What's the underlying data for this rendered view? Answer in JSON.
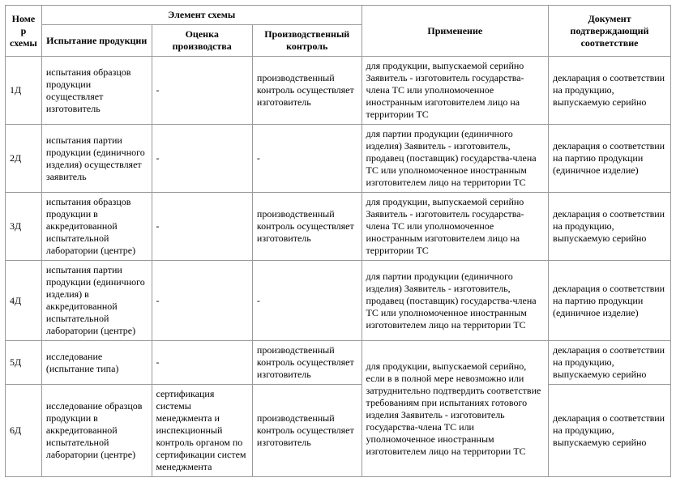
{
  "header": {
    "scheme_no": "Номер схемы",
    "element": "Элемент схемы",
    "application": "Применение",
    "document": "Документ подтверждающий соответствие",
    "testing": "Испытание продукции",
    "evaluation": "Оценка производства",
    "control": "Производственный контроль"
  },
  "dash": "-",
  "rows": [
    {
      "num": "1Д",
      "test": "испытания образцов продукции осуществляет изготовитель",
      "ctrl": "производственный контроль осуществляет изготовитель",
      "app": "для продукции, выпускаемой серийно Заявитель - изготовитель государства-члена ТС или уполномоченное иностранным изготовителем лицо на территории ТС",
      "doc": "декларация о соответствии на продукцию, выпускаемую серийно"
    },
    {
      "num": "2Д",
      "test": "испытания партии продукции (единичного изделия) осуществляет заявитель",
      "app": "для партии продукции (единичного изделия) Заявитель - изготовитель, продавец (поставщик) государства-члена ТС или уполномоченное иностранным изготовителем лицо на территории ТС",
      "doc": "декларация о соответствии на партию продукции (единичное изделие)"
    },
    {
      "num": "3Д",
      "test": "испытания образцов продукции в аккредитованной испытательной лаборатории (центре)",
      "ctrl": "производственный контроль осуществляет изготовитель",
      "app": "для продукции, выпускаемой серийно Заявитель - изготовитель государства-члена ТС или уполномоченное иностранным изготовителем лицо на территории ТС",
      "doc": "декларация о соответствии на продукцию, выпускаемую серийно"
    },
    {
      "num": "4Д",
      "test": "испытания партии продукции (единичного изделия) в аккредитованной испытательной лаборатории (центре)",
      "app": "для партии продукции (единичного изделия) Заявитель - изготовитель, продавец (поставщик) государства-члена ТС или уполномоченное иностранным изготовителем лицо на территории ТС",
      "doc": "декларация о соответствии на партию продукции (единичное изделие)"
    },
    {
      "num": "5Д",
      "test": "исследование (испытание типа)",
      "ctrl": "производственный контроль осуществляет изготовитель",
      "doc": "декларация о соответствии на продукцию, выпускаемую серийно"
    },
    {
      "num": "6Д",
      "test": "исследование образцов продукции в аккредитованной испытательной лаборатории (центре)",
      "eval": "сертификация системы менеджмента и инспекционный контроль органом по сертификации систем менеджмента",
      "ctrl": "производственный контроль осуществляет изготовитель",
      "doc": "декларация о соответствии на продукцию, выпускаемую серийно"
    }
  ],
  "merged_app_56": "для продукции, выпускаемой серийно, если в в полной мере невозможно или затруднительно подтвердить соответствие требованиям при испытаниях готового изделия Заявитель - изготовитель государства-члена ТС или уполномоченное иностранным изготовителем лицо на территории ТС",
  "colors": {
    "border": "#9a9a9a",
    "text": "#000000",
    "background": "#ffffff"
  },
  "font": {
    "family": "Times New Roman",
    "size_pt": 9
  }
}
